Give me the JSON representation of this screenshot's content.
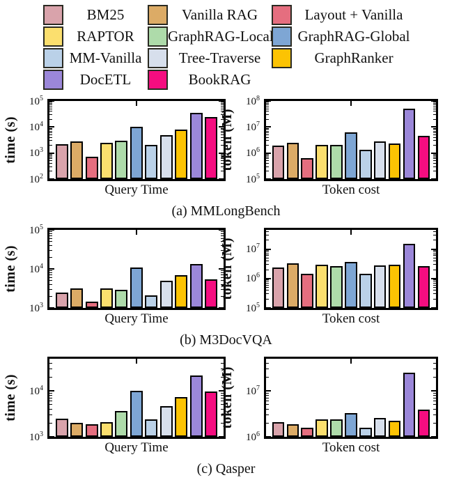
{
  "legend": {
    "swatch_border": "#2a2a22",
    "items": [
      {
        "label": "BM25",
        "color": "#d9a3ab"
      },
      {
        "label": "Vanilla RAG",
        "color": "#dcab66"
      },
      {
        "label": "Layout + Vanilla",
        "color": "#e56e7f"
      },
      {
        "label": "RAPTOR",
        "color": "#fbdf6e"
      },
      {
        "label": "GraphRAG-Local",
        "color": "#aedbaa"
      },
      {
        "label": "GraphRAG-Global",
        "color": "#7ea6d4"
      },
      {
        "label": "MM-Vanilla",
        "color": "#bad1e8"
      },
      {
        "label": "Tree-Traverse",
        "color": "#d7dfec"
      },
      {
        "label": "GraphRanker",
        "color": "#fcc303"
      },
      {
        "label": "DocETL",
        "color": "#9b87d9"
      },
      {
        "label": "BookRAG",
        "color": "#f50d80"
      }
    ]
  },
  "chart_data": [
    {
      "type": "bar",
      "caption": "(a) MMLongBench",
      "categories": [
        "BM25",
        "Vanilla RAG",
        "Layout + Vanilla",
        "RAPTOR",
        "GraphRAG-Local",
        "GraphRAG-Global",
        "MM-Vanilla",
        "Tree-Traverse",
        "GraphRanker",
        "DocETL",
        "BookRAG"
      ],
      "panels": [
        {
          "ylabel": "time (s)",
          "xlabel": "Query Time",
          "yscale": "log",
          "ylim": [
            100,
            100000
          ],
          "yticks": [
            100,
            1000,
            10000,
            100000
          ],
          "values": [
            2200,
            2800,
            700,
            2400,
            3000,
            10500,
            2000,
            5000,
            7800,
            36000,
            24000
          ]
        },
        {
          "ylabel": "token (M)",
          "xlabel": "Token cost",
          "yscale": "log",
          "ylim": [
            100000,
            100000000
          ],
          "yticks": [
            100000,
            1000000,
            10000000,
            100000000
          ],
          "values": [
            1900000,
            2400000,
            650000,
            2100000,
            2100000,
            6300000,
            1300000,
            2800000,
            2300000,
            52000000,
            4500000
          ]
        }
      ]
    },
    {
      "type": "bar",
      "caption": "(b) M3DocVQA",
      "categories": [
        "BM25",
        "Vanilla RAG",
        "Layout + Vanilla",
        "RAPTOR",
        "GraphRAG-Local",
        "GraphRAG-Global",
        "MM-Vanilla",
        "Tree-Traverse",
        "GraphRanker",
        "DocETL",
        "BookRAG"
      ],
      "panels": [
        {
          "ylabel": "time (s)",
          "xlabel": "Query Time",
          "yscale": "log",
          "ylim": [
            1000,
            100000
          ],
          "yticks": [
            1000,
            10000,
            100000
          ],
          "values": [
            2500,
            3100,
            1450,
            3100,
            2900,
            11000,
            2100,
            4900,
            6900,
            13500,
            5400
          ]
        },
        {
          "ylabel": "token (M)",
          "xlabel": "Token cost",
          "yscale": "log",
          "ylim": [
            100000,
            45000000
          ],
          "yticks": [
            100000,
            1000000,
            10000000
          ],
          "values": [
            2400000,
            3200000,
            1450000,
            2900000,
            2700000,
            3600000,
            1450000,
            2800000,
            3000000,
            15000000,
            2700000
          ]
        }
      ]
    },
    {
      "type": "bar",
      "caption": "(c) Qasper",
      "categories": [
        "BM25",
        "Vanilla RAG",
        "Layout + Vanilla",
        "RAPTOR",
        "GraphRAG-Local",
        "GraphRAG-Global",
        "MM-Vanilla",
        "Tree-Traverse",
        "GraphRanker",
        "DocETL",
        "BookRAG"
      ],
      "panels": [
        {
          "ylabel": "time (s)",
          "xlabel": "Query Time",
          "yscale": "log",
          "ylim": [
            1000,
            50000
          ],
          "yticks": [
            1000,
            10000
          ],
          "values": [
            2500,
            2000,
            1850,
            2050,
            3700,
            10000,
            2400,
            4700,
            7200,
            22000,
            9700
          ]
        },
        {
          "ylabel": "token (M)",
          "xlabel": "Token cost",
          "yscale": "log",
          "ylim": [
            1000000,
            50000000
          ],
          "yticks": [
            1000000,
            10000000
          ],
          "values": [
            2100000,
            1900000,
            1550000,
            2400000,
            2400000,
            3300000,
            1600000,
            2600000,
            2200000,
            25000000,
            3900000
          ]
        }
      ]
    }
  ]
}
